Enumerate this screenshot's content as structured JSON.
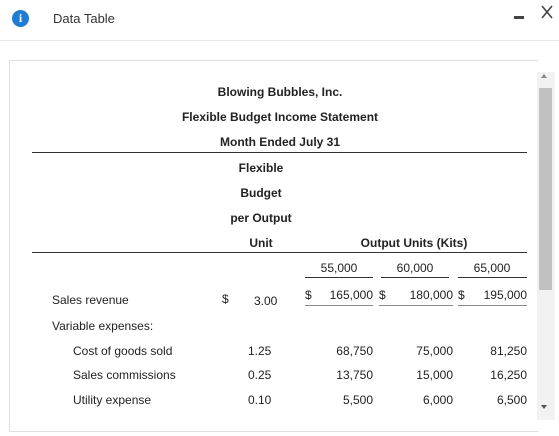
{
  "window": {
    "title": "Data Table",
    "info_icon": "i"
  },
  "statement": {
    "company": "Blowing Bubbles, Inc.",
    "name": "Flexible Budget Income Statement",
    "period": "Month Ended July 31"
  },
  "columns": {
    "per_unit_header": [
      "Flexible",
      "Budget",
      "per Output",
      "Unit"
    ],
    "output_header": "Output Units (Kits)",
    "levels": [
      "55,000",
      "60,000",
      "65,000"
    ]
  },
  "rows": {
    "sales": {
      "label": "Sales revenue",
      "cur": "$",
      "unit": "3.00",
      "v1cur": "$",
      "v1": "165,000",
      "v2cur": "$",
      "v2": "180,000",
      "v3cur": "$",
      "v3": "195,000"
    },
    "variable": {
      "label": "Variable expenses:"
    },
    "cogs": {
      "label": "Cost of goods sold",
      "unit": "1.25",
      "v1": "68,750",
      "v2": "75,000",
      "v3": "81,250"
    },
    "commissions": {
      "label": "Sales commissions",
      "unit": "0.25",
      "v1": "13,750",
      "v2": "15,000",
      "v3": "16,250"
    },
    "utility": {
      "label": "Utility expense",
      "unit": "0.10",
      "v1": "5,500",
      "v2": "6,000",
      "v3": "6,500"
    }
  }
}
